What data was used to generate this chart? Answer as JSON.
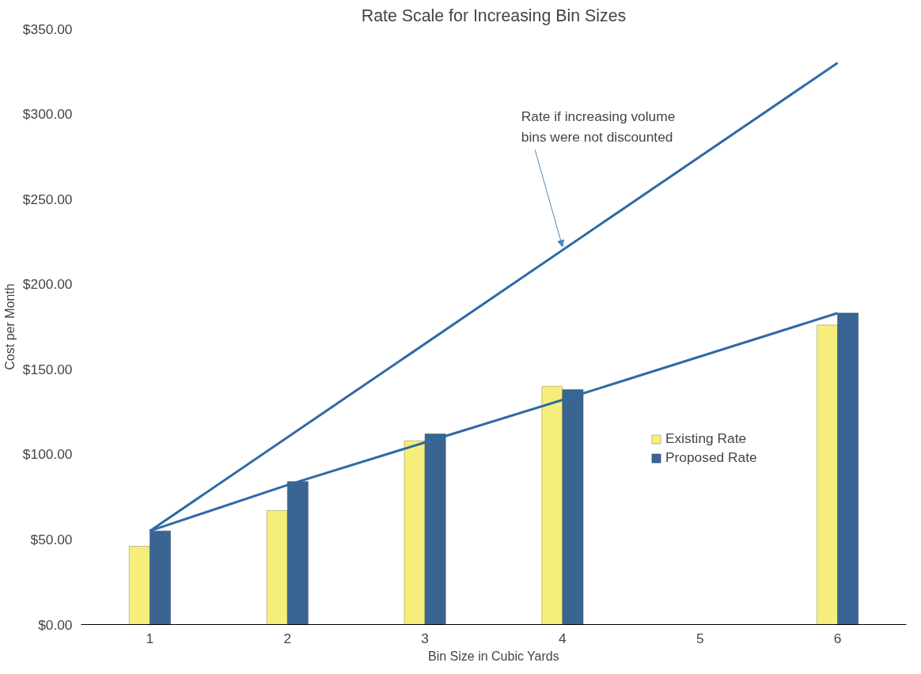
{
  "chart_data": {
    "type": "bar",
    "title": "Rate Scale for Increasing Bin Sizes",
    "xlabel": "Bin Size in Cubic Yards",
    "ylabel": "Cost per Month",
    "x": [
      1,
      2,
      3,
      4,
      6
    ],
    "series": [
      {
        "name": "Existing Rate",
        "color": "#f5ee7a",
        "values": [
          46,
          67,
          108,
          140,
          176
        ]
      },
      {
        "name": "Proposed Rate",
        "color": "#3a6491",
        "values": [
          55,
          84,
          112,
          138,
          183
        ]
      },
      {
        "type": "line",
        "color": "#2f6aa3",
        "x": [
          1,
          6
        ],
        "values": [
          55,
          330
        ]
      },
      {
        "type": "line",
        "color": "#2f6aa3",
        "x": [
          1,
          2,
          3,
          4,
          6
        ],
        "values": [
          55,
          82,
          107,
          132,
          183
        ]
      }
    ],
    "xlim": [
      0.5,
      6.5
    ],
    "xticks": [
      1,
      2,
      3,
      4,
      5,
      6
    ],
    "ylim": [
      0,
      350
    ],
    "yticks": [
      {
        "value": 0,
        "label": "$0.00"
      },
      {
        "value": 50,
        "label": "$50.00"
      },
      {
        "value": 100,
        "label": "$100.00"
      },
      {
        "value": 150,
        "label": "$150.00"
      },
      {
        "value": 200,
        "label": "$200.00"
      },
      {
        "value": 250,
        "label": "$250.00"
      },
      {
        "value": 300,
        "label": "$300.00"
      },
      {
        "value": 350,
        "label": "$350.00"
      }
    ],
    "annotations": [
      {
        "text": "Rate if increasing volume bins were not discounted",
        "x": 4,
        "y": 220
      }
    ],
    "legend": "right",
    "grid": false
  }
}
